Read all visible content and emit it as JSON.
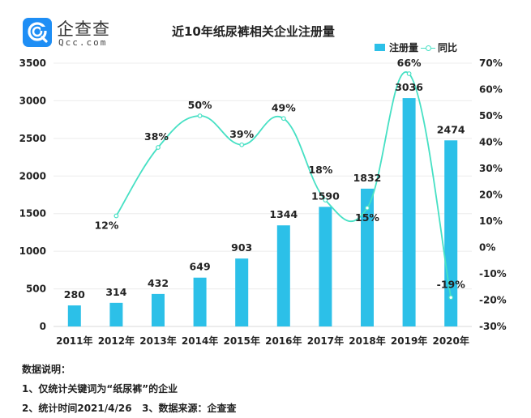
{
  "logo": {
    "cn": "企查查",
    "en": "Qcc.com",
    "brand_color": "#1e8ef5"
  },
  "chart_data": {
    "type": "bar",
    "title": "近10年纸尿裤相关企业注册量",
    "categories": [
      "2011年",
      "2012年",
      "2013年",
      "2014年",
      "2015年",
      "2016年",
      "2017年",
      "2018年",
      "2019年",
      "2020年"
    ],
    "series": [
      {
        "name": "注册量",
        "type": "bar",
        "axis": "left",
        "color": "#2cc0e8",
        "values": [
          280,
          314,
          432,
          649,
          903,
          1344,
          1590,
          1832,
          3036,
          2474
        ],
        "labels": [
          "280",
          "314",
          "432",
          "649",
          "903",
          "1344",
          "1590",
          "1832",
          "3036",
          "2474"
        ]
      },
      {
        "name": "同比",
        "type": "line",
        "axis": "right",
        "color": "#46e0c4",
        "values": [
          null,
          12,
          38,
          50,
          39,
          49,
          18,
          15,
          66,
          -19
        ],
        "labels": [
          "",
          "12%",
          "38%",
          "50%",
          "39%",
          "49%",
          "18%",
          "15%",
          "66%",
          "-19%"
        ]
      }
    ],
    "left_axis": {
      "ylim": [
        0,
        3500
      ],
      "ticks": [
        "0",
        "500",
        "1000",
        "1500",
        "2000",
        "2500",
        "3000",
        "3500"
      ]
    },
    "right_axis": {
      "ylim": [
        -30,
        70
      ],
      "ticks": [
        "-30%",
        "-20%",
        "-10%",
        "0%",
        "10%",
        "20%",
        "30%",
        "40%",
        "50%",
        "60%",
        "70%"
      ]
    },
    "legend_position": "top-right",
    "grid": true
  },
  "notes": {
    "heading": "数据说明：",
    "line1": "1、仅统计关键词为“纸尿裤”的企业",
    "line2": "2、统计时间2021/4/26   3、数据来源：企查查"
  }
}
